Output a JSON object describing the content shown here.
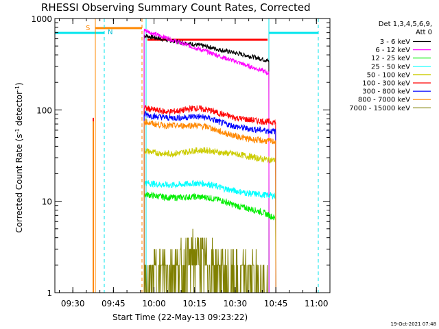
{
  "chart_data": {
    "type": "line",
    "title": "RHESSI Observing Summary Count Rates, Corrected",
    "xlabel": "Start Time (22-May-13 09:23:22)",
    "ylabel_main": "Corrected Count Rate (s",
    "ylabel_sup1": "-1",
    "ylabel_mid": " detector",
    "ylabel_sup2": "-1",
    "ylabel_end": ")",
    "y_scale": "log",
    "xlim": [
      "09:23:22",
      "11:05:00"
    ],
    "ylim": [
      1,
      1000
    ],
    "x_ticks": [
      "09:30",
      "09:45",
      "10:00",
      "10:15",
      "10:30",
      "10:45",
      "11:00"
    ],
    "y_ticks": [
      "1",
      "10",
      "100",
      "1000"
    ],
    "legend_header": [
      "Det 1,3,4,5,6,9,",
      "Att 0"
    ],
    "legend_placement": "right of plot",
    "footer": "19-Oct-2021 07:48",
    "markers": {
      "saa_label": "S",
      "night_label": "N"
    },
    "series": [
      {
        "name": "3 - 6 keV",
        "color": "#000000",
        "x": [
          "09:56:20",
          "10:00",
          "10:05",
          "10:10",
          "10:15",
          "10:20",
          "10:25",
          "10:30",
          "10:35",
          "10:40",
          "10:42:30"
        ],
        "y": [
          650,
          620,
          580,
          550,
          520,
          490,
          450,
          420,
          390,
          360,
          340
        ]
      },
      {
        "name": "6 - 12 keV",
        "color": "#ff00ff",
        "x": [
          "09:56:20",
          "10:00",
          "10:05",
          "10:10",
          "10:15",
          "10:20",
          "10:25",
          "10:30",
          "10:35",
          "10:40",
          "10:42:30"
        ],
        "y": [
          750,
          680,
          610,
          540,
          480,
          430,
          380,
          340,
          300,
          270,
          250
        ]
      },
      {
        "name": "12 - 25 keV",
        "color": "#00ee00",
        "x": [
          "09:56:20",
          "10:00",
          "10:05",
          "10:10",
          "10:15",
          "10:20",
          "10:25",
          "10:30",
          "10:35",
          "10:40",
          "10:45"
        ],
        "y": [
          12,
          11.5,
          11,
          11,
          11.2,
          11,
          10.2,
          9,
          8.3,
          7.6,
          6.5
        ]
      },
      {
        "name": "25 - 50 keV",
        "color": "#00ffff",
        "x": [
          "09:56:20",
          "10:00",
          "10:05",
          "10:10",
          "10:15",
          "10:20",
          "10:25",
          "10:30",
          "10:35",
          "10:40",
          "10:45"
        ],
        "y": [
          16,
          15.5,
          15,
          15.2,
          15.8,
          15.5,
          14,
          13,
          12.2,
          11.8,
          11.5
        ]
      },
      {
        "name": "50 - 100 keV",
        "color": "#cccc00",
        "x": [
          "09:56:20",
          "10:00",
          "10:05",
          "10:10",
          "10:15",
          "10:20",
          "10:25",
          "10:30",
          "10:35",
          "10:40",
          "10:45"
        ],
        "y": [
          36,
          34,
          33,
          34,
          36,
          36,
          34,
          33,
          31,
          29,
          28
        ]
      },
      {
        "name": "100 - 300 keV",
        "color": "#ff0000",
        "x": [
          "09:56:20",
          "10:00",
          "10:05",
          "10:10",
          "10:15",
          "10:20",
          "10:25",
          "10:30",
          "10:35",
          "10:40",
          "10:45"
        ],
        "y": [
          105,
          100,
          95,
          98,
          105,
          100,
          90,
          82,
          78,
          75,
          73
        ]
      },
      {
        "name": "300 - 800 keV",
        "color": "#0000ff",
        "x": [
          "09:56:20",
          "10:00",
          "10:05",
          "10:10",
          "10:15",
          "10:20",
          "10:25",
          "10:30",
          "10:35",
          "10:40",
          "10:45"
        ],
        "y": [
          90,
          85,
          82,
          82,
          85,
          82,
          72,
          66,
          62,
          60,
          58
        ]
      },
      {
        "name": "800 - 7000 keV",
        "color": "#ff8800",
        "x": [
          "09:56:20",
          "10:00",
          "10:05",
          "10:10",
          "10:15",
          "10:20",
          "10:25",
          "10:30",
          "10:35",
          "10:40",
          "10:45"
        ],
        "y": [
          75,
          70,
          67,
          67,
          68,
          65,
          57,
          52,
          48,
          46,
          45
        ]
      },
      {
        "name": "7000 - 15000 keV",
        "color": "#808000",
        "x": [
          "09:56:20",
          "10:00",
          "10:05",
          "10:10",
          "10:15",
          "10:20",
          "10:25",
          "10:30",
          "10:35",
          "10:40",
          "10:42"
        ],
        "y": [
          1,
          1.5,
          2,
          1.8,
          2.5,
          2,
          1.6,
          1.3,
          1.5,
          1.2,
          1.1
        ]
      }
    ]
  }
}
